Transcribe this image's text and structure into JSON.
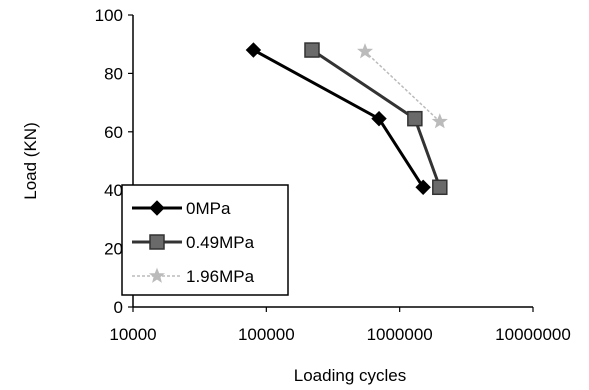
{
  "chart_data": {
    "type": "scatter",
    "xscale": "log",
    "xlim": [
      10000,
      10000000
    ],
    "ylim": [
      0,
      100
    ],
    "xticks": [
      10000,
      100000,
      1000000,
      10000000
    ],
    "xtick_labels": [
      "10000",
      "100000",
      "1000000",
      "10000000"
    ],
    "yticks": [
      0,
      20,
      40,
      60,
      80,
      100
    ],
    "ytick_labels": [
      "0",
      "20",
      "40",
      "60",
      "80",
      "100"
    ],
    "xlabel": "Loading cycles",
    "ylabel": "Load (KN)",
    "grid": false,
    "legend_position": "lower-left",
    "series": [
      {
        "name": "0MPa",
        "marker": "diamond",
        "color": "#000000",
        "points": [
          [
            80000,
            88
          ],
          [
            700000,
            64.5
          ],
          [
            1500000,
            41
          ]
        ]
      },
      {
        "name": "0.49MPa",
        "marker": "square",
        "color": "#333333",
        "points": [
          [
            220000,
            88
          ],
          [
            1300000,
            64.5
          ],
          [
            2000000,
            41
          ]
        ]
      },
      {
        "name": "1.96MPa",
        "marker": "star",
        "color": "#bbbbbb",
        "points": [
          [
            550000,
            87.5
          ],
          [
            2000000,
            63.5
          ]
        ]
      }
    ]
  }
}
